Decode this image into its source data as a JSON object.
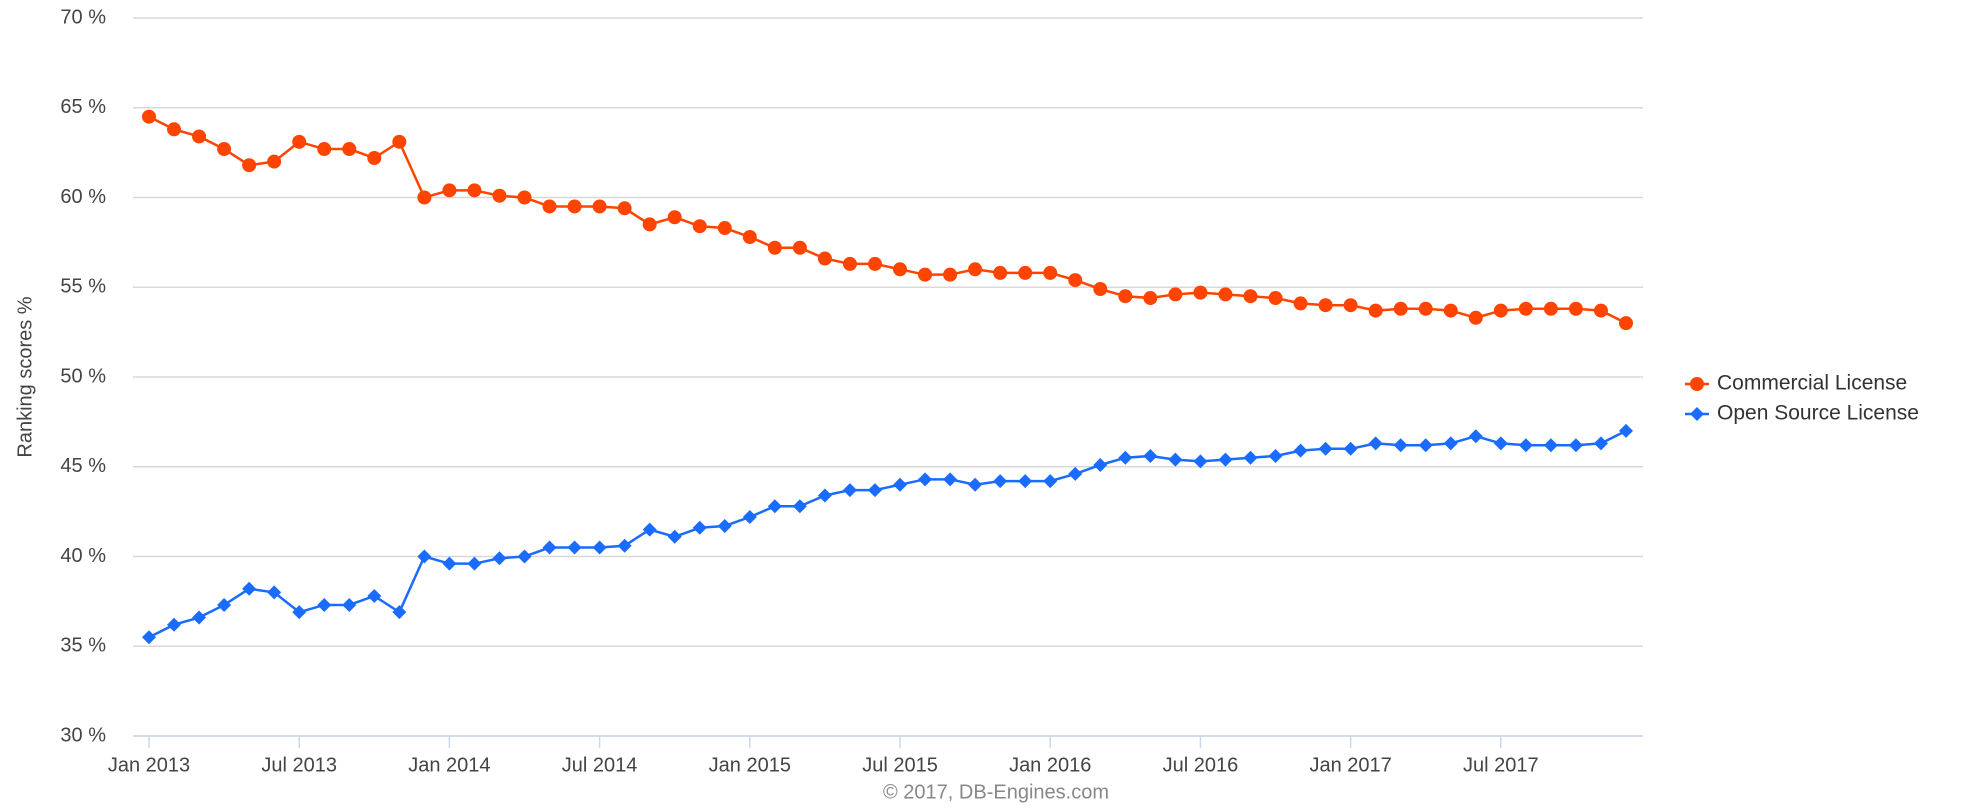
{
  "chart_data": {
    "type": "line",
    "y_label": "Ranking scores %",
    "credits": "© 2017, DB-Engines.com",
    "categories": [
      "Jan 2013",
      null,
      null,
      null,
      null,
      null,
      "Jul 2013",
      null,
      null,
      null,
      null,
      null,
      "Jan 2014",
      null,
      null,
      null,
      null,
      null,
      "Jul 2014",
      null,
      null,
      null,
      null,
      null,
      "Jan 2015",
      null,
      null,
      null,
      null,
      null,
      "Jul 2015",
      null,
      null,
      null,
      null,
      null,
      "Jan 2016",
      null,
      null,
      null,
      null,
      null,
      "Jul 2016",
      null,
      null,
      null,
      null,
      null,
      "Jan 2017",
      null,
      null,
      null,
      null,
      null,
      "Jul 2017",
      null,
      null,
      null,
      null,
      null
    ],
    "series": [
      {
        "name": "Commercial License",
        "color": "#ff4400",
        "marker": "circle",
        "values": [
          64.5,
          63.8,
          63.4,
          62.7,
          61.8,
          62.0,
          63.1,
          62.7,
          62.7,
          62.2,
          63.1,
          60.0,
          60.4,
          60.4,
          60.1,
          60.0,
          59.5,
          59.5,
          59.5,
          59.4,
          58.5,
          58.9,
          58.4,
          58.3,
          57.8,
          57.2,
          57.2,
          56.6,
          56.3,
          56.3,
          56.0,
          55.7,
          55.7,
          56.0,
          55.8,
          55.8,
          55.8,
          55.4,
          54.9,
          54.5,
          54.4,
          54.6,
          54.7,
          54.6,
          54.5,
          54.4,
          54.1,
          54.0,
          54.0,
          53.7,
          53.8,
          53.8,
          53.7,
          53.3,
          53.7,
          53.8,
          53.8,
          53.8,
          53.7,
          53.0
        ]
      },
      {
        "name": "Open Source License",
        "color": "#1a6cff",
        "marker": "diamond",
        "values": [
          35.5,
          36.2,
          36.6,
          37.3,
          38.2,
          38.0,
          36.9,
          37.3,
          37.3,
          37.8,
          36.9,
          40.0,
          39.6,
          39.6,
          39.9,
          40.0,
          40.5,
          40.5,
          40.5,
          40.6,
          41.5,
          41.1,
          41.6,
          41.7,
          42.2,
          42.8,
          42.8,
          43.4,
          43.7,
          43.7,
          44.0,
          44.3,
          44.3,
          44.0,
          44.2,
          44.2,
          44.2,
          44.6,
          45.1,
          45.5,
          45.6,
          45.4,
          45.3,
          45.4,
          45.5,
          45.6,
          45.9,
          46.0,
          46.0,
          46.3,
          46.2,
          46.2,
          46.3,
          46.7,
          46.3,
          46.2,
          46.2,
          46.2,
          46.3,
          47.0
        ]
      }
    ],
    "ylim": [
      30,
      70
    ],
    "yticks": [
      {
        "value": 30,
        "label": "30 %"
      },
      {
        "value": 35,
        "label": "35 %"
      },
      {
        "value": 40,
        "label": "40 %"
      },
      {
        "value": 45,
        "label": "45 %"
      },
      {
        "value": 50,
        "label": "50 %"
      },
      {
        "value": 55,
        "label": "55 %"
      },
      {
        "value": 60,
        "label": "60 %"
      },
      {
        "value": 65,
        "label": "65 %"
      },
      {
        "value": 70,
        "label": "70 %"
      }
    ],
    "grid": true,
    "legend": "right"
  }
}
